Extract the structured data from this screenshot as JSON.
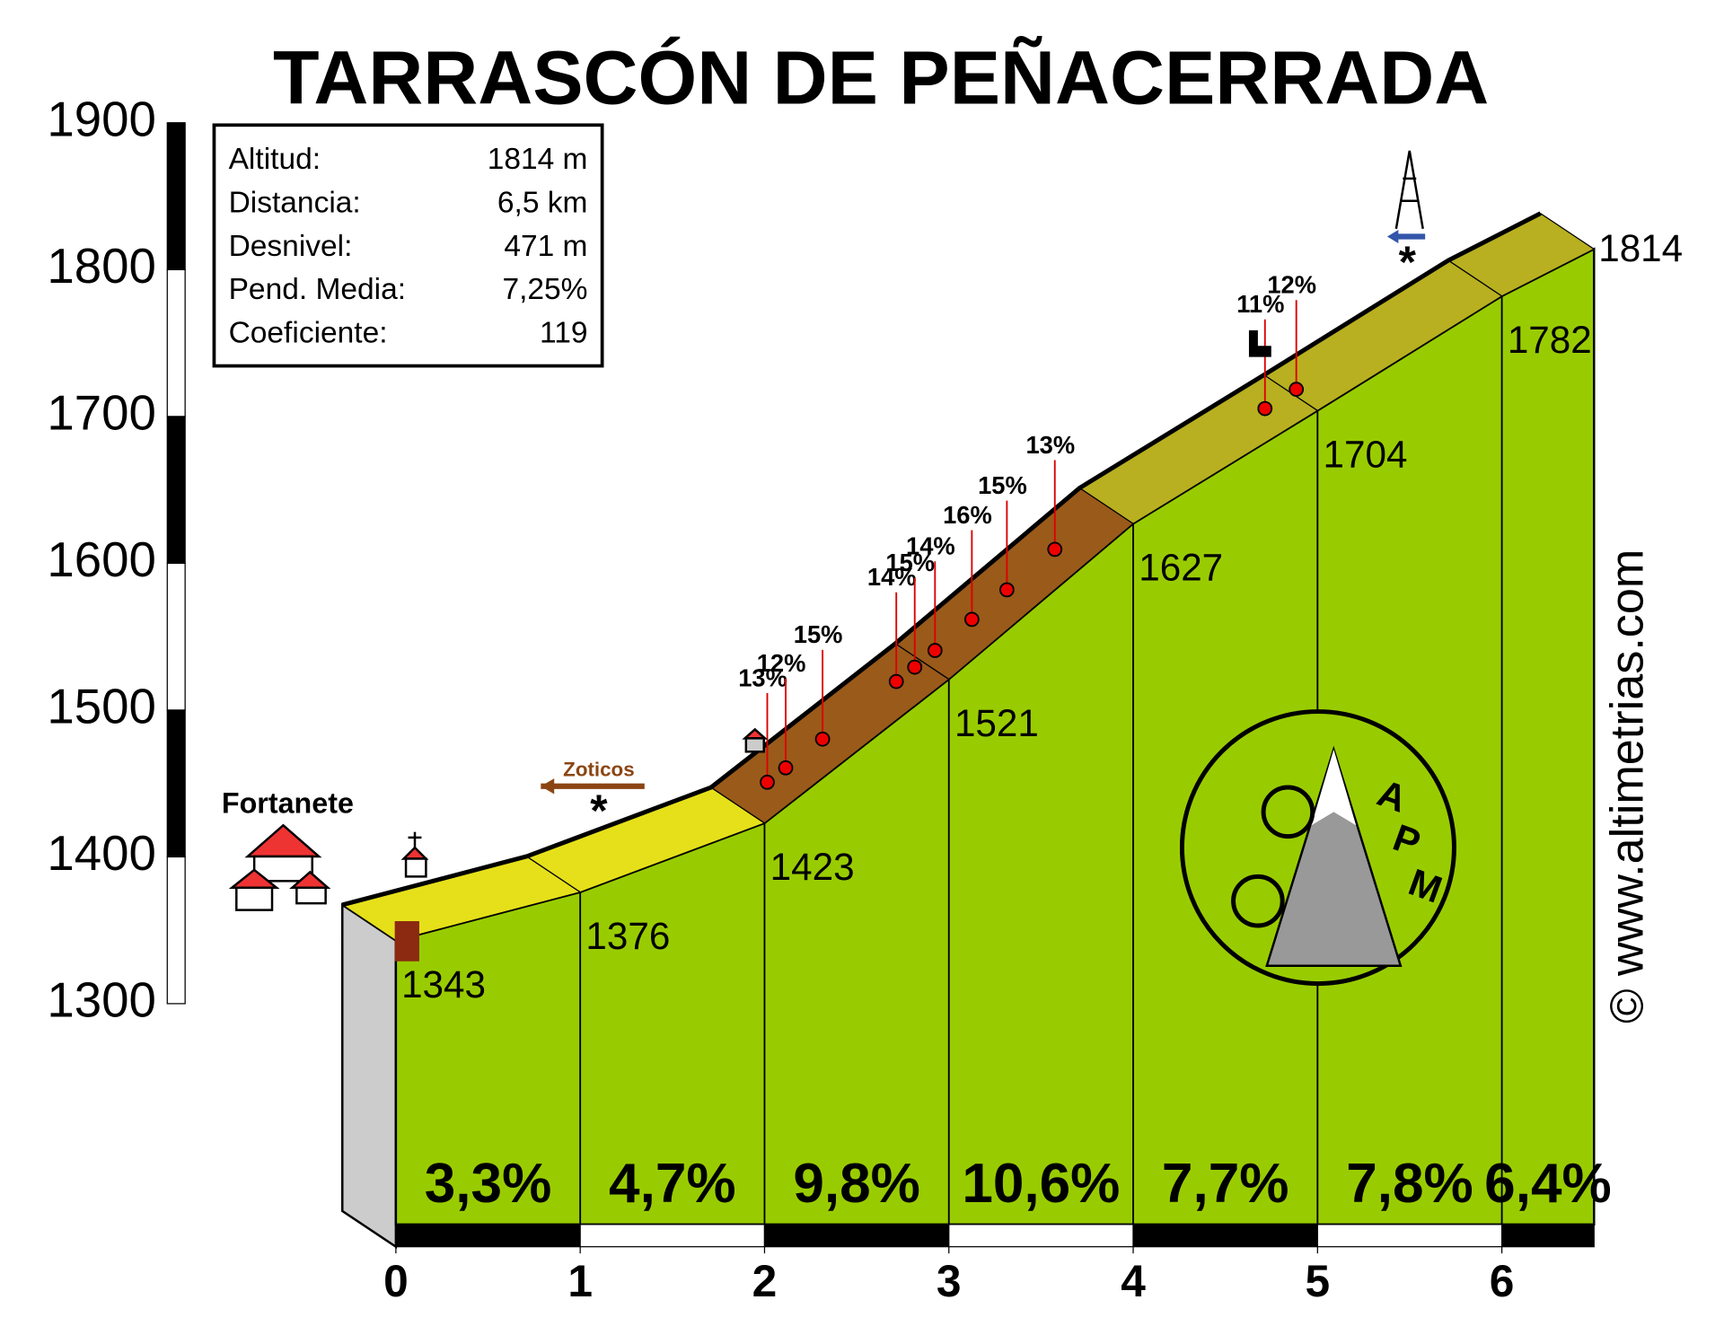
{
  "chart_data": {
    "type": "profile",
    "title": "TARRASCÓN DE PEÑACERRADA",
    "x": [
      0,
      1,
      2,
      3,
      4,
      5,
      6,
      6.5
    ],
    "values": [
      1343,
      1376,
      1423,
      1521,
      1627,
      1704,
      1782,
      1814
    ],
    "segment_gradients": [
      3.3,
      4.7,
      9.8,
      10.6,
      7.7,
      7.8,
      6.4
    ],
    "segment_gradient_labels": [
      "3,3%",
      "4,7%",
      "9,8%",
      "10,6%",
      "7,7%",
      "7,8%",
      "6,4%"
    ],
    "steep_points": {
      "x": [
        2.16,
        2.26,
        2.46,
        2.86,
        2.96,
        3.07,
        3.27,
        3.46,
        3.72,
        4.86,
        5.03
      ],
      "values": [
        13,
        12,
        15,
        14,
        15,
        14,
        16,
        15,
        13,
        11,
        12
      ],
      "value_labels": [
        "13%",
        "12%",
        "15%",
        "14%",
        "15%",
        "14%",
        "16%",
        "15%",
        "13%",
        "11%",
        "12%"
      ]
    },
    "xlim": [
      0,
      6.5
    ],
    "xticks": [
      0,
      1,
      2,
      3,
      4,
      5,
      6
    ],
    "ylim": [
      1300,
      1900
    ],
    "yticks": [
      1300,
      1400,
      1500,
      1600,
      1700,
      1800,
      1900
    ],
    "color": "#99cc00",
    "places": {
      "start": "Fortanete",
      "turn": "Zoticos"
    },
    "info": [
      [
        "Altitud:",
        "1814 m"
      ],
      [
        "Distancia:",
        "6,5 km"
      ],
      [
        "Desnivel:",
        "471 m"
      ],
      [
        "Pend. Media:",
        "7,25%"
      ],
      [
        "Coeficiente:",
        "119"
      ]
    ],
    "logo": [
      "A",
      "P",
      "M"
    ],
    "credit": "© www.altimetrias.com"
  }
}
